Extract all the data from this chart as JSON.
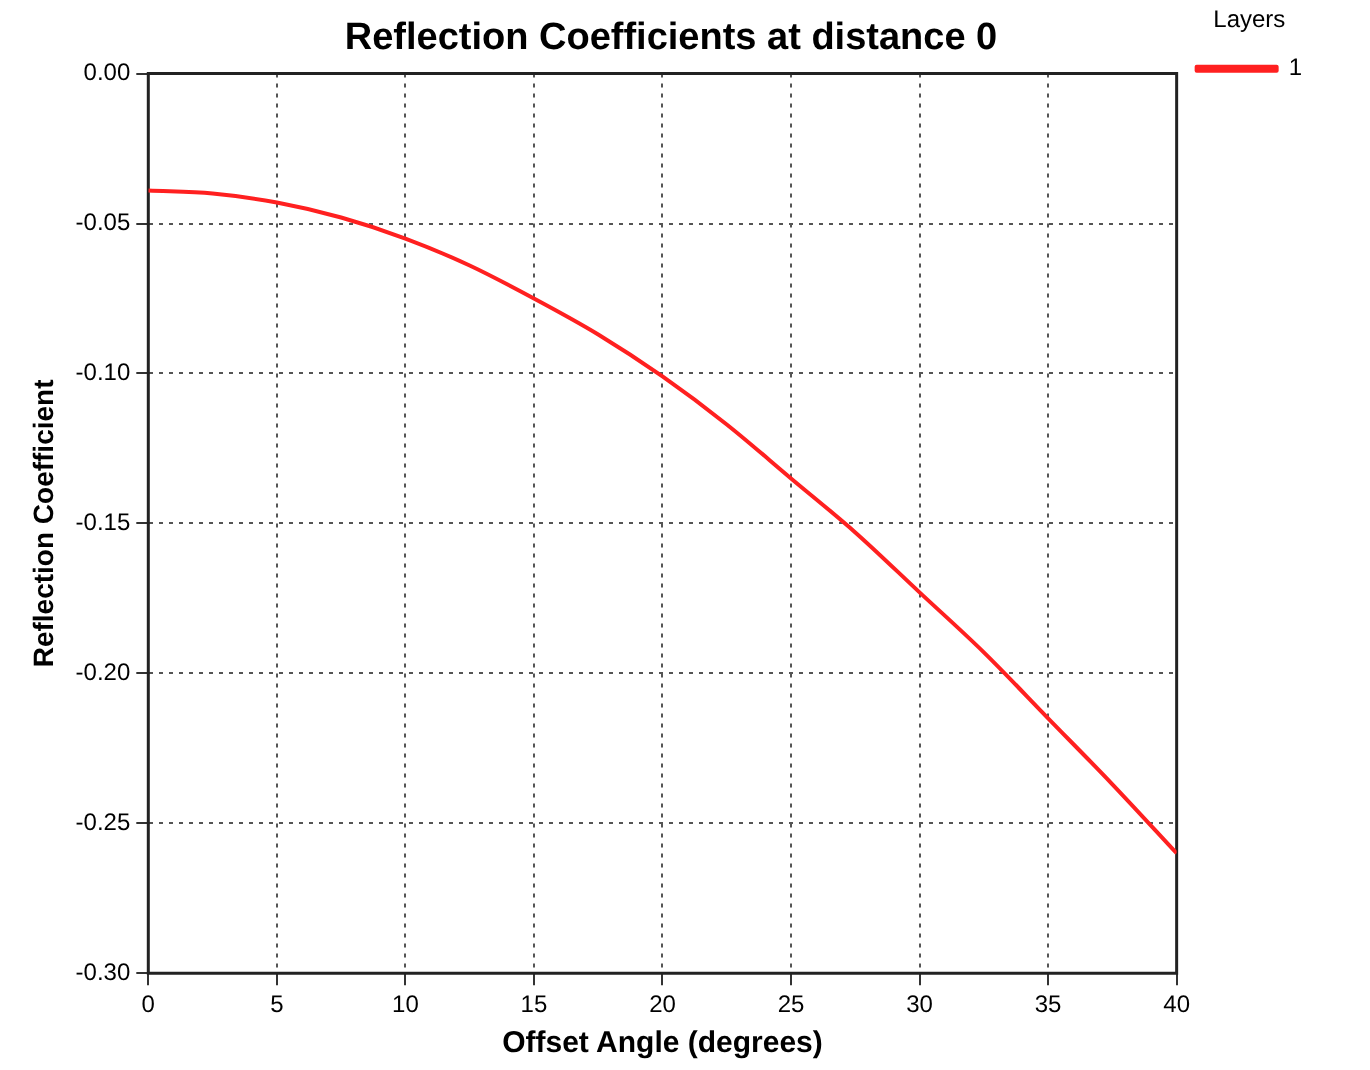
{
  "chart_data": {
    "type": "line",
    "title": "Reflection Coefficients at distance 0",
    "xlabel": "Offset Angle (degrees)",
    "ylabel": "Reflection Coefficient",
    "legend_title": "Layers",
    "x": [
      0,
      2.5,
      5,
      7.5,
      10,
      12.5,
      15,
      17.5,
      20,
      22.5,
      25,
      27.5,
      30,
      32.5,
      35,
      37.5,
      40
    ],
    "series": [
      {
        "name": "1",
        "color": "#ff2020",
        "values": [
          -0.039,
          -0.04,
          -0.043,
          -0.048,
          -0.055,
          -0.064,
          -0.075,
          -0.087,
          -0.101,
          -0.117,
          -0.135,
          -0.153,
          -0.173,
          -0.193,
          -0.215,
          -0.237,
          -0.26
        ]
      }
    ],
    "xlim": [
      0,
      40
    ],
    "xticks": [
      0,
      5,
      10,
      15,
      20,
      25,
      30,
      35,
      40
    ],
    "ylim": [
      -0.3,
      0
    ],
    "yticks": [
      {
        "value": -0.3,
        "label": "-0.30"
      },
      {
        "value": -0.25,
        "label": "-0.25"
      },
      {
        "value": -0.2,
        "label": "-0.20"
      },
      {
        "value": -0.15,
        "label": "-0.15"
      },
      {
        "value": -0.1,
        "label": "-0.10"
      },
      {
        "value": -0.05,
        "label": "-0.05"
      },
      {
        "value": 0,
        "label": "0.00"
      }
    ],
    "grid": true,
    "legend": "top right",
    "marker": "none",
    "line_style": "solid"
  }
}
